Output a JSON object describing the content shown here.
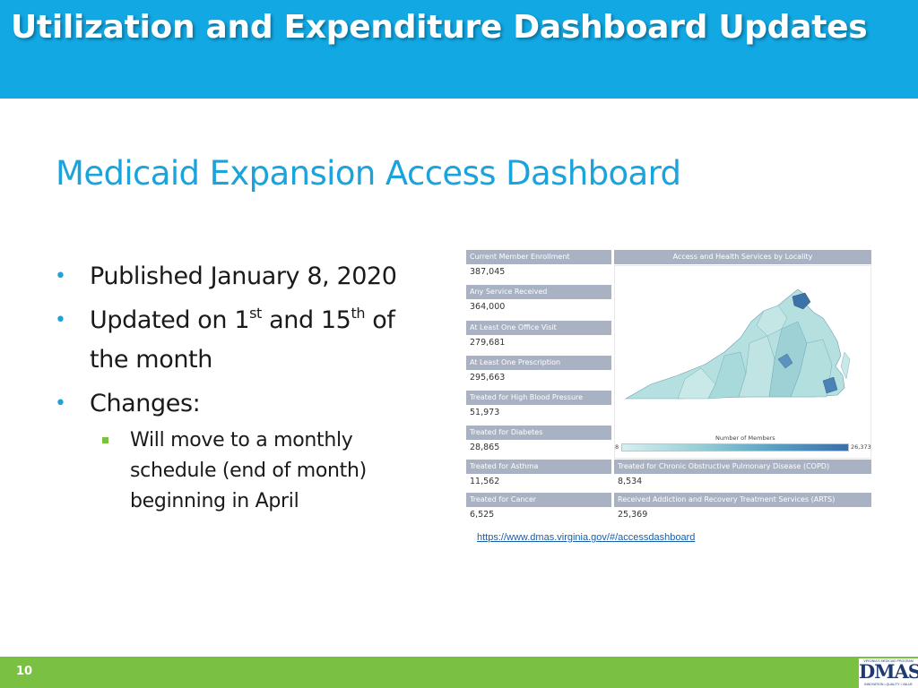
{
  "header": {
    "title": "Utilization and Expenditure Dashboard Updates"
  },
  "subtitle": "Medicaid Expansion Access Dashboard",
  "bullets": {
    "published": "Published January 8, 2020",
    "updated_prefix": "Updated on 1",
    "updated_sup1": "st",
    "updated_mid": " and 15",
    "updated_sup2": "th",
    "updated_suffix": " of the month",
    "changes": "Changes:",
    "sub_items": [
      "Will move to a monthly schedule (end of month) beginning in April"
    ]
  },
  "dashboard": {
    "metrics": [
      {
        "label": "Current Member Enrollment",
        "value": "387,045"
      },
      {
        "label": "Any Service Received",
        "value": "364,000"
      },
      {
        "label": "At Least One Office Visit",
        "value": "279,681"
      },
      {
        "label": "At Least One Prescription",
        "value": "295,663"
      },
      {
        "label": "Treated for High Blood Pressure",
        "value": "51,973"
      },
      {
        "label": "Treated for Diabetes",
        "value": "28,865"
      },
      {
        "label": "Treated for Asthma",
        "value": "11,562"
      },
      {
        "label": "Treated for Cancer",
        "value": "6,525"
      }
    ],
    "map_title": "Access and Health Services by Locality",
    "legend": {
      "title": "Number of Members",
      "min": "8",
      "max": "26,373"
    },
    "wide_metrics": [
      {
        "label": "Treated for Chronic Obstructive Pulmonary Disease (COPD)",
        "value": "8,534"
      },
      {
        "label": "Received Addiction and Recovery Treatment Services (ARTS)",
        "value": "25,369"
      }
    ]
  },
  "url": "https://www.dmas.virginia.gov/#/accessdashboard",
  "footer": {
    "page_number": "10",
    "logo_top": "VIRGINIA'S MEDICAID PROGRAM",
    "logo_main": "DMAS",
    "logo_bottom": "INNOVATION • QUALITY • VALUE"
  },
  "colors": {
    "header_bg": "#12a8e4",
    "subtitle": "#1ba3dc",
    "footer_bg": "#7ac143",
    "metric_label_bg": "#a9b2c3"
  }
}
